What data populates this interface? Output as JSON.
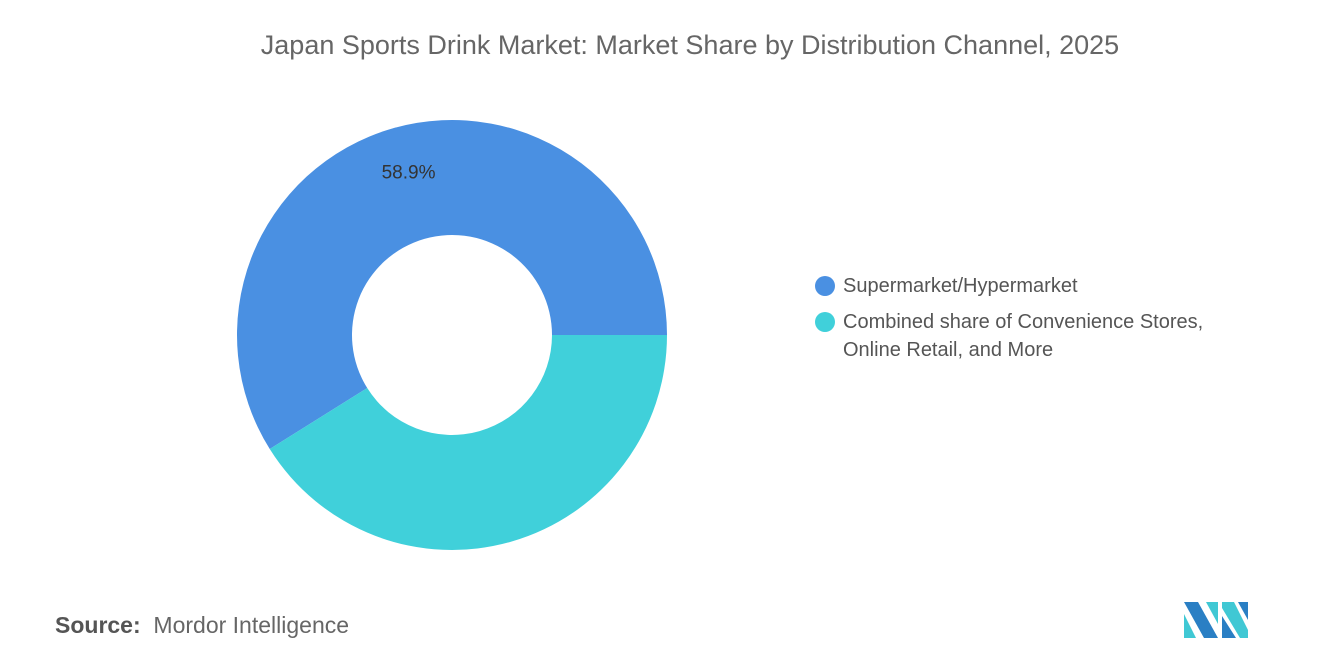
{
  "title": "Japan Sports Drink Market: Market Share by Distribution Channel, 2025",
  "chart_data": {
    "type": "pie",
    "donut": true,
    "title": "Japan Sports Drink Market: Market Share by Distribution Channel, 2025",
    "categories": [
      "Supermarket/Hypermarket",
      "Combined share of Convenience Stores, Online Retail, and More"
    ],
    "values": [
      58.9,
      41.1
    ],
    "data_labels": [
      "58.9%",
      ""
    ],
    "colors": [
      "#4a90e2",
      "#40d0da"
    ],
    "legend_position": "right"
  },
  "source": {
    "label": "Source:",
    "value": "Mordor Intelligence"
  }
}
